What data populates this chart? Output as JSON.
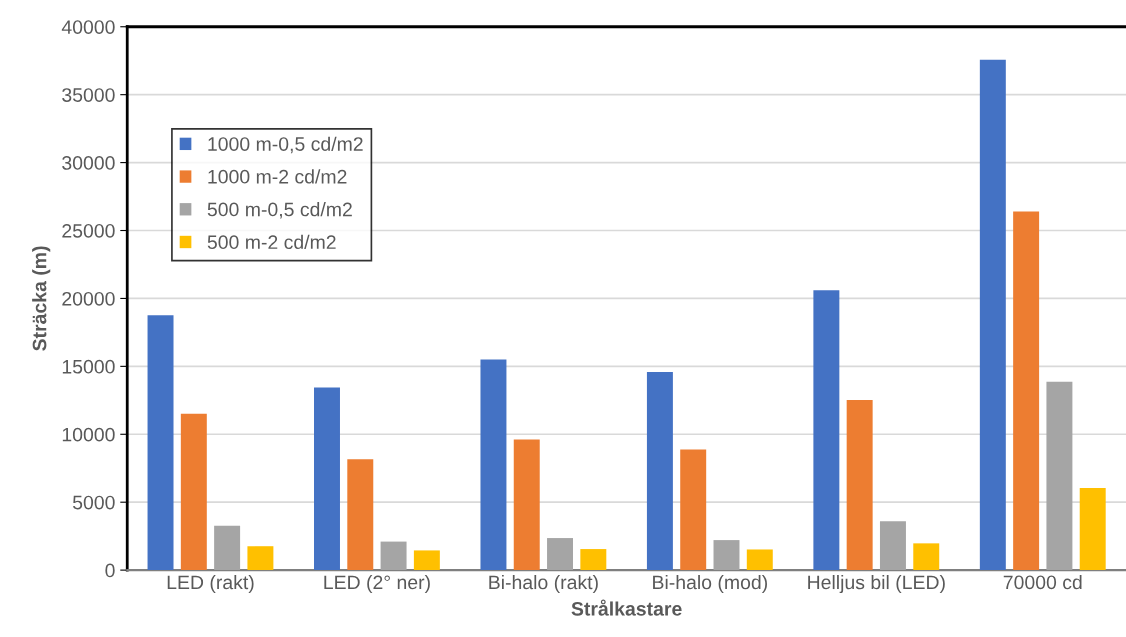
{
  "chart_data": {
    "type": "bar",
    "xlabel": "Strålkastare",
    "ylabel": "Sträcka (m)",
    "categories": [
      "LED (rakt)",
      "LED (2° ner)",
      "Bi-halo (rakt)",
      "Bi-halo (mod)",
      "Helljus bil (LED)",
      "70000 cd"
    ],
    "series": [
      {
        "name": "1000 m-0,5 cd/m2",
        "color": "#4472c4",
        "values": [
          18760,
          13450,
          15500,
          14580,
          20600,
          37570
        ]
      },
      {
        "name": "1000 m-2 cd/m2",
        "color": "#ed7d31",
        "values": [
          11510,
          8170,
          9620,
          8880,
          12530,
          26400
        ]
      },
      {
        "name": "500 m-0,5 cd/m2",
        "color": "#a5a5a5",
        "values": [
          3260,
          2100,
          2360,
          2210,
          3600,
          13870
        ]
      },
      {
        "name": "500 m-2 cd/m2",
        "color": "#ffc000",
        "values": [
          1760,
          1450,
          1550,
          1520,
          1970,
          6040
        ]
      }
    ],
    "ylim": [
      0,
      40000
    ],
    "yticks": [
      0,
      5000,
      10000,
      15000,
      20000,
      25000,
      30000,
      35000,
      40000
    ],
    "grid": "y",
    "legend": "top left"
  }
}
